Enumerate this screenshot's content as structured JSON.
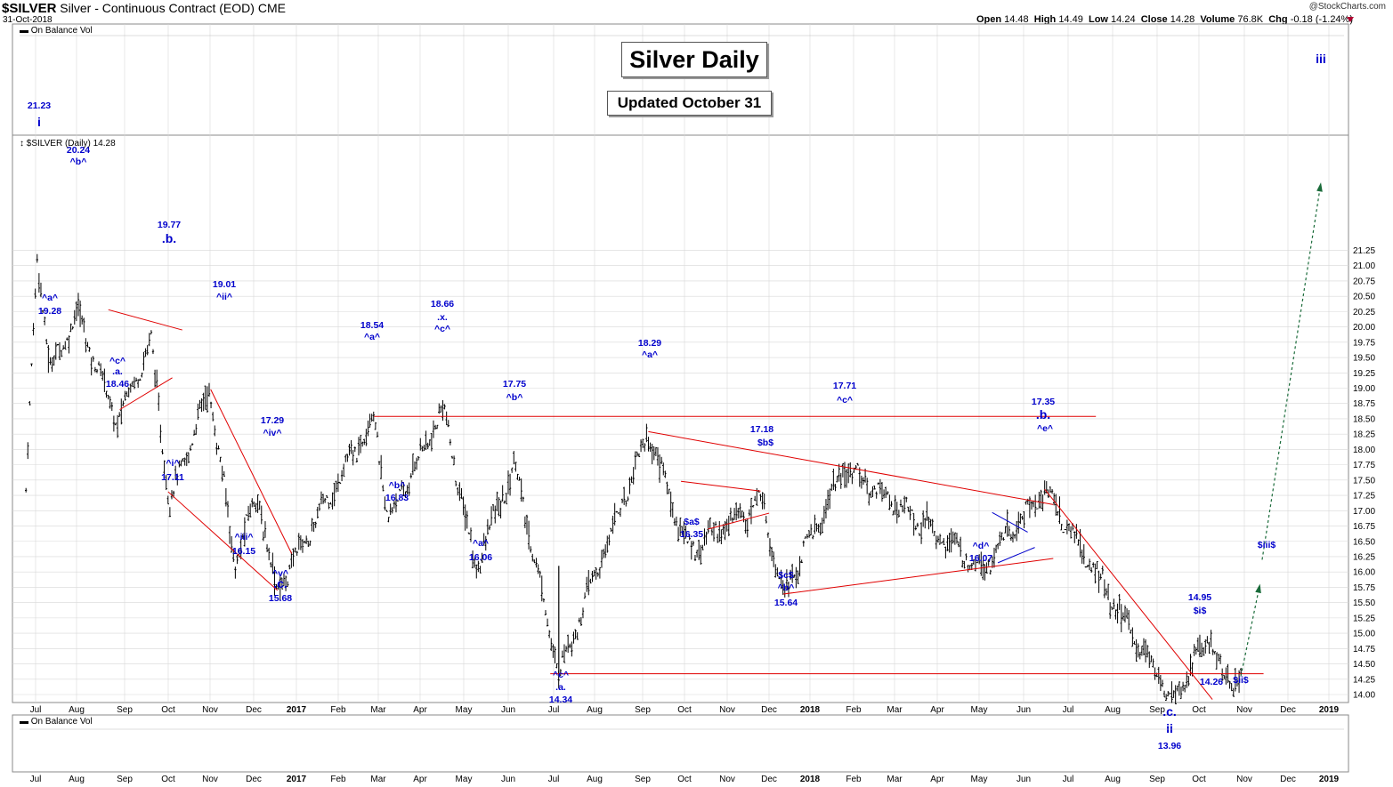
{
  "header": {
    "symbol": "$SILVER",
    "description": "Silver - Continuous Contract (EOD)",
    "exchange": "CME",
    "date": "31-Oct-2018",
    "copyright": "@StockCharts.com",
    "open_label": "Open",
    "open": "14.48",
    "high_label": "High",
    "high": "14.49",
    "low_label": "Low",
    "low": "14.24",
    "close_label": "Close",
    "close": "14.28",
    "volume_label": "Volume",
    "volume": "76.8K",
    "chg_label": "Chg",
    "chg": "-0.18 (-1.24%)"
  },
  "legend": {
    "top_indicator": "On Balance Vol",
    "price_series": "$SILVER (Daily) 14.28",
    "bottom_indicator": "On Balance Vol"
  },
  "titles": {
    "main": "Silver Daily",
    "sub": "Updated October 31"
  },
  "colors": {
    "price_bar": "#000000",
    "trendline": "#e00000",
    "wave_label": "#0000cc",
    "projection": "#1a6b3a",
    "grid": "#d8d8d8"
  },
  "chart_data": {
    "type": "ohlc",
    "y_ticks": [
      14.0,
      14.25,
      14.5,
      14.75,
      15.0,
      15.25,
      15.5,
      15.75,
      16.0,
      16.25,
      16.5,
      16.75,
      17.0,
      17.25,
      17.5,
      17.75,
      18.0,
      18.25,
      18.5,
      18.75,
      19.0,
      19.25,
      19.5,
      19.75,
      20.0,
      20.25,
      20.5,
      20.75,
      21.0,
      21.25
    ],
    "x_ticks": [
      "Jul",
      "Aug",
      "Sep",
      "Oct",
      "Nov",
      "Dec",
      "2017",
      "Feb",
      "Mar",
      "Apr",
      "May",
      "Jun",
      "Jul",
      "Aug",
      "Sep",
      "Oct",
      "Nov",
      "Dec",
      "2018",
      "Feb",
      "Mar",
      "Apr",
      "May",
      "Jun",
      "Jul",
      "Aug",
      "Sep",
      "Oct",
      "Nov",
      "Dec",
      "2019"
    ],
    "x_ticks_bold": [
      "2017",
      "2018",
      "2019"
    ],
    "pivots": [
      {
        "date": "2016-06-27",
        "price": 17.3
      },
      {
        "date": "2016-07-05",
        "price": 21.23
      },
      {
        "date": "2016-07-14",
        "price": 19.28
      },
      {
        "date": "2016-08-02",
        "price": 20.24
      },
      {
        "date": "2016-08-30",
        "price": 18.46
      },
      {
        "date": "2016-09-23",
        "price": 19.77
      },
      {
        "date": "2016-10-06",
        "price": 17.11
      },
      {
        "date": "2016-11-03",
        "price": 19.01
      },
      {
        "date": "2016-11-21",
        "price": 16.15
      },
      {
        "date": "2016-12-07",
        "price": 17.29
      },
      {
        "date": "2016-12-20",
        "price": 15.68
      },
      {
        "date": "2017-02-27",
        "price": 18.54
      },
      {
        "date": "2017-03-09",
        "price": 16.83
      },
      {
        "date": "2017-04-17",
        "price": 18.66
      },
      {
        "date": "2017-05-09",
        "price": 16.06
      },
      {
        "date": "2017-06-06",
        "price": 17.75
      },
      {
        "date": "2017-07-07",
        "price": 14.34
      },
      {
        "date": "2017-09-08",
        "price": 18.29
      },
      {
        "date": "2017-10-06",
        "price": 16.35
      },
      {
        "date": "2017-11-27",
        "price": 17.18
      },
      {
        "date": "2017-12-12",
        "price": 15.64
      },
      {
        "date": "2018-01-25",
        "price": 17.71
      },
      {
        "date": "2018-05-01",
        "price": 16.07
      },
      {
        "date": "2018-06-14",
        "price": 17.35
      },
      {
        "date": "2018-08-01",
        "price": 15.5
      },
      {
        "date": "2018-09-11",
        "price": 13.96
      },
      {
        "date": "2018-10-09",
        "price": 14.95
      },
      {
        "date": "2018-10-17",
        "price": 14.26
      },
      {
        "date": "2018-10-31",
        "price": 14.28
      }
    ],
    "trendlines": [
      {
        "from": {
          "date": "2017-02-27",
          "price": 18.54
        },
        "to": {
          "date": "2018-07-20",
          "price": 18.54
        }
      },
      {
        "from": {
          "date": "2017-07-01",
          "price": 14.34
        },
        "to": {
          "date": "2018-11-15",
          "price": 14.34
        }
      },
      {
        "from": {
          "date": "2017-09-08",
          "price": 18.29
        },
        "to": {
          "date": "2018-06-20",
          "price": 17.1
        }
      },
      {
        "from": {
          "date": "2017-12-12",
          "price": 15.64
        },
        "to": {
          "date": "2018-06-20",
          "price": 16.22
        }
      },
      {
        "from": {
          "date": "2018-06-14",
          "price": 17.35
        },
        "to": {
          "date": "2018-10-10",
          "price": 13.92
        }
      },
      {
        "from": {
          "date": "2016-08-24",
          "price": 20.28
        },
        "to": {
          "date": "2016-10-15",
          "price": 19.95
        }
      },
      {
        "from": {
          "date": "2016-09-01",
          "price": 18.65
        },
        "to": {
          "date": "2016-10-08",
          "price": 19.17
        }
      },
      {
        "from": {
          "date": "2016-10-05",
          "price": 17.31
        },
        "to": {
          "date": "2016-12-21",
          "price": 15.7
        }
      },
      {
        "from": {
          "date": "2016-11-04",
          "price": 18.98
        },
        "to": {
          "date": "2016-12-31",
          "price": 16.3
        }
      },
      {
        "from": {
          "date": "2017-10-01",
          "price": 17.48
        },
        "to": {
          "date": "2017-11-26",
          "price": 17.32
        }
      },
      {
        "from": {
          "date": "2017-10-20",
          "price": 16.7
        },
        "to": {
          "date": "2017-12-02",
          "price": 16.96
        }
      },
      {
        "from": {
          "date": "2017-12-12",
          "price": 15.64
        },
        "to": {
          "date": "2017-12-12",
          "price": 15.64
        }
      }
    ],
    "triangle_lines": [
      {
        "from": {
          "date": "2018-05-08",
          "price": 16.97
        },
        "to": {
          "date": "2018-06-02",
          "price": 16.65
        }
      },
      {
        "from": {
          "date": "2018-05-12",
          "price": 16.15
        },
        "to": {
          "date": "2018-06-07",
          "price": 16.4
        }
      }
    ],
    "projection": {
      "from": {
        "date": "2018-10-30",
        "price": 14.3
      },
      "to": {
        "date": "2018-11-12",
        "price": 15.75
      }
    },
    "projection_upper": {
      "from": {
        "date": "2018-11-14",
        "price": 16.2
      },
      "to": {
        "date": "2018-12-25",
        "price": 22.3
      }
    },
    "annotations": [
      {
        "text": "21.23",
        "x": 44,
        "y": 122
      },
      {
        "text": "i",
        "x": 44,
        "y": 142,
        "big": true
      },
      {
        "text": "20.24",
        "x": 88,
        "y": 172
      },
      {
        "text": "^b^",
        "x": 88,
        "y": 185
      },
      {
        "text": "^a^",
        "x": 56,
        "y": 338
      },
      {
        "text": "19.28",
        "x": 56,
        "y": 353
      },
      {
        "text": "19.77",
        "x": 190,
        "y": 256
      },
      {
        "text": ".b.",
        "x": 190,
        "y": 273,
        "big": true
      },
      {
        "text": "^c^",
        "x": 132,
        "y": 409
      },
      {
        "text": ".a.",
        "x": 132,
        "y": 421
      },
      {
        "text": "18.46",
        "x": 132,
        "y": 435
      },
      {
        "text": "19.01",
        "x": 252,
        "y": 323
      },
      {
        "text": "^ii^",
        "x": 252,
        "y": 337
      },
      {
        "text": "^i^",
        "x": 194,
        "y": 524
      },
      {
        "text": "17.11",
        "x": 194,
        "y": 540
      },
      {
        "text": "17.29",
        "x": 306,
        "y": 476
      },
      {
        "text": "^iv^",
        "x": 306,
        "y": 490
      },
      {
        "text": "^iii^",
        "x": 274,
        "y": 607
      },
      {
        "text": "16.15",
        "x": 274,
        "y": 623
      },
      {
        "text": "^v^",
        "x": 315,
        "y": 648
      },
      {
        "text": ".c.",
        "x": 315,
        "y": 661,
        "big": true
      },
      {
        "text": "15.68",
        "x": 315,
        "y": 676
      },
      {
        "text": "18.54",
        "x": 418,
        "y": 369
      },
      {
        "text": "^a^",
        "x": 418,
        "y": 382
      },
      {
        "text": "^b^",
        "x": 446,
        "y": 549
      },
      {
        "text": "16.83",
        "x": 446,
        "y": 563
      },
      {
        "text": "18.66",
        "x": 497,
        "y": 345
      },
      {
        "text": ".x.",
        "x": 497,
        "y": 360
      },
      {
        "text": "^c^",
        "x": 497,
        "y": 373
      },
      {
        "text": "^a^",
        "x": 540,
        "y": 614
      },
      {
        "text": "16.06",
        "x": 540,
        "y": 630
      },
      {
        "text": "17.75",
        "x": 578,
        "y": 435
      },
      {
        "text": "^b^",
        "x": 578,
        "y": 450
      },
      {
        "text": "^c^",
        "x": 630,
        "y": 762
      },
      {
        "text": ".a.",
        "x": 630,
        "y": 776
      },
      {
        "text": "14.34",
        "x": 630,
        "y": 790
      },
      {
        "text": "18.29",
        "x": 730,
        "y": 389
      },
      {
        "text": "^a^",
        "x": 730,
        "y": 402
      },
      {
        "text": "$a$",
        "x": 777,
        "y": 590
      },
      {
        "text": "16.35",
        "x": 777,
        "y": 604
      },
      {
        "text": "17.18",
        "x": 856,
        "y": 486
      },
      {
        "text": "$b$",
        "x": 860,
        "y": 501
      },
      {
        "text": "$c$",
        "x": 883,
        "y": 650
      },
      {
        "text": "^b^",
        "x": 883,
        "y": 664
      },
      {
        "text": "15.64",
        "x": 883,
        "y": 681
      },
      {
        "text": "17.71",
        "x": 949,
        "y": 437
      },
      {
        "text": "^c^",
        "x": 949,
        "y": 453
      },
      {
        "text": "^d^",
        "x": 1102,
        "y": 617
      },
      {
        "text": "16.07",
        "x": 1102,
        "y": 631
      },
      {
        "text": "17.35",
        "x": 1172,
        "y": 455
      },
      {
        "text": ".b.",
        "x": 1172,
        "y": 471,
        "big": true
      },
      {
        "text": "^e^",
        "x": 1174,
        "y": 485
      },
      {
        "text": "14.95",
        "x": 1348,
        "y": 675
      },
      {
        "text": "$i$",
        "x": 1348,
        "y": 690
      },
      {
        "text": "14.26",
        "x": 1361,
        "y": 770
      },
      {
        "text": "$ii$",
        "x": 1394,
        "y": 768
      },
      {
        "text": ".c.",
        "x": 1314,
        "y": 805,
        "big": true
      },
      {
        "text": "ii",
        "x": 1314,
        "y": 824,
        "big": true
      },
      {
        "text": "13.96",
        "x": 1314,
        "y": 842
      },
      {
        "text": "$iii$",
        "x": 1423,
        "y": 616
      },
      {
        "text": "iii",
        "x": 1484,
        "y": 71,
        "big": true
      }
    ]
  }
}
